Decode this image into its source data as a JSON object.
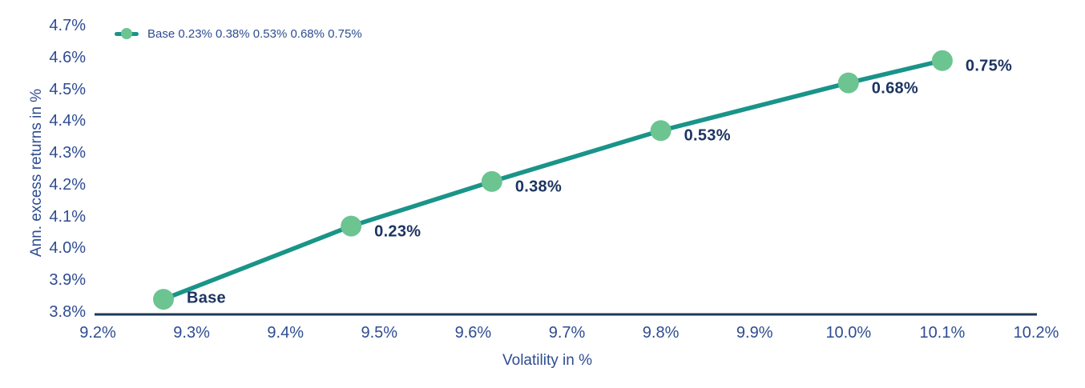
{
  "chart_data": {
    "type": "line",
    "title": "",
    "xlabel": "Volatility in %",
    "ylabel": "Ann. excess returns in %",
    "xlim": [
      9.2,
      10.2
    ],
    "ylim": [
      3.8,
      4.7
    ],
    "grid": false,
    "legend": {
      "position": "top-left",
      "label": "Base 0.23% 0.38% 0.53% 0.68% 0.75%"
    },
    "x_ticks": [
      {
        "value": 9.2,
        "label": "9.2%"
      },
      {
        "value": 9.3,
        "label": "9.3%"
      },
      {
        "value": 9.4,
        "label": "9.4%"
      },
      {
        "value": 9.5,
        "label": "9.5%"
      },
      {
        "value": 9.6,
        "label": "9.6%"
      },
      {
        "value": 9.7,
        "label": "9.7%"
      },
      {
        "value": 9.8,
        "label": "9.8%"
      },
      {
        "value": 9.9,
        "label": "9.9%"
      },
      {
        "value": 10.0,
        "label": "10.0%"
      },
      {
        "value": 10.1,
        "label": "10.1%"
      },
      {
        "value": 10.2,
        "label": "10.2%"
      }
    ],
    "y_ticks": [
      {
        "value": 3.8,
        "label": "3.8%"
      },
      {
        "value": 3.9,
        "label": "3.9%"
      },
      {
        "value": 4.0,
        "label": "4.0%"
      },
      {
        "value": 4.1,
        "label": "4.1%"
      },
      {
        "value": 4.2,
        "label": "4.2%"
      },
      {
        "value": 4.3,
        "label": "4.3%"
      },
      {
        "value": 4.4,
        "label": "4.4%"
      },
      {
        "value": 4.5,
        "label": "4.5%"
      },
      {
        "value": 4.6,
        "label": "4.6%"
      },
      {
        "value": 4.7,
        "label": "4.7%"
      }
    ],
    "series": [
      {
        "name": "Base 0.23% 0.38% 0.53% 0.68% 0.75%",
        "line_color": "#1A9488",
        "marker_color": "#6CC491",
        "points": [
          {
            "x": 9.27,
            "y": 3.84,
            "label": "Base"
          },
          {
            "x": 9.47,
            "y": 4.07,
            "label": "0.23%"
          },
          {
            "x": 9.62,
            "y": 4.21,
            "label": "0.38%"
          },
          {
            "x": 9.8,
            "y": 4.37,
            "label": "0.53%"
          },
          {
            "x": 10.0,
            "y": 4.52,
            "label": "0.68%"
          },
          {
            "x": 10.1,
            "y": 4.59,
            "label": "0.75%"
          }
        ]
      }
    ],
    "colors": {
      "axis_line": "#1E3A5A",
      "tick_text": "#2E4C92",
      "point_label_text": "#1D3462"
    }
  }
}
